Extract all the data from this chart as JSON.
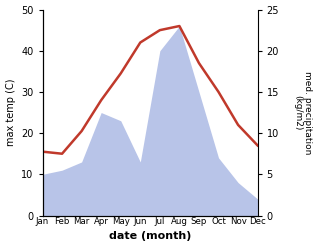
{
  "months": [
    "Jan",
    "Feb",
    "Mar",
    "Apr",
    "May",
    "Jun",
    "Jul",
    "Aug",
    "Sep",
    "Oct",
    "Nov",
    "Dec"
  ],
  "temperature": [
    15.5,
    15.0,
    20.5,
    28.0,
    34.5,
    42.0,
    45.0,
    46.0,
    37.0,
    30.0,
    22.0,
    17.0
  ],
  "precipitation": [
    10,
    11,
    13,
    25,
    23,
    13,
    40,
    46,
    30,
    14,
    8,
    4
  ],
  "temp_color": "#c0392b",
  "precip_fill_color": "#b8c4e8",
  "xlabel": "date (month)",
  "ylabel_left": "max temp (C)",
  "ylabel_right": "med. precipitation\n(kg/m2)",
  "ylim_left": [
    0,
    50
  ],
  "ylim_right": [
    0,
    25
  ],
  "background_color": "#ffffff",
  "right_yticks": [
    0,
    5,
    10,
    15,
    20,
    25
  ],
  "right_yticklabels": [
    "0",
    "5",
    "10",
    "15",
    "20",
    "25"
  ]
}
